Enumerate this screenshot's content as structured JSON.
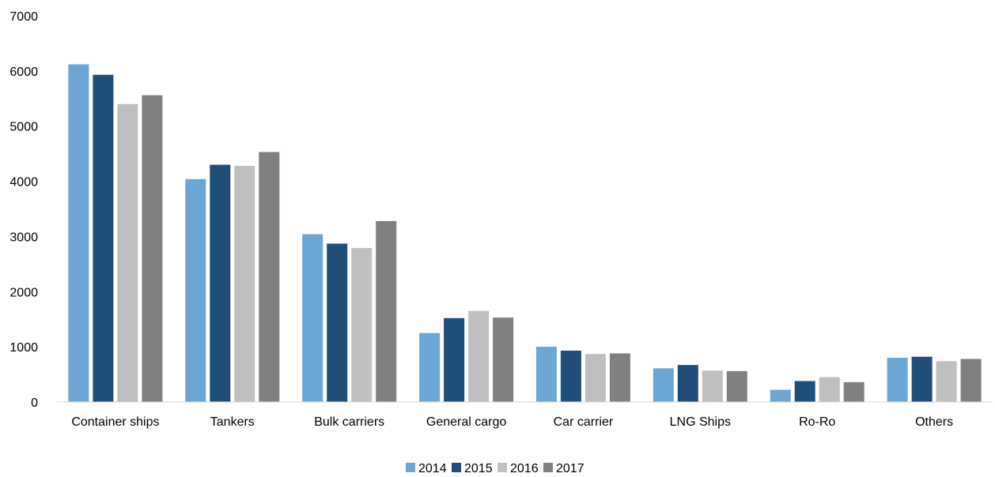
{
  "chart_data": {
    "type": "bar",
    "categories": [
      "Container ships",
      "Tankers",
      "Bulk carriers",
      "General cargo",
      "Car carrier",
      "LNG Ships",
      "Ro-Ro",
      "Others"
    ],
    "series": [
      {
        "name": "2014",
        "color": "#6aa6d6",
        "values": [
          6120,
          4040,
          3040,
          1250,
          1000,
          610,
          220,
          800
        ]
      },
      {
        "name": "2015",
        "color": "#1f4e79",
        "values": [
          5930,
          4300,
          2870,
          1520,
          930,
          670,
          380,
          820
        ]
      },
      {
        "name": "2016",
        "color": "#bfbfbf",
        "values": [
          5400,
          4280,
          2790,
          1650,
          870,
          570,
          450,
          740
        ]
      },
      {
        "name": "2017",
        "color": "#808080",
        "values": [
          5560,
          4530,
          3280,
          1530,
          880,
          560,
          360,
          780
        ]
      }
    ],
    "y_ticks": [
      "0",
      "1000",
      "2000",
      "3000",
      "4000",
      "5000",
      "6000",
      "7000"
    ],
    "ylim": [
      0,
      7000
    ],
    "title": "",
    "xlabel": "",
    "ylabel": "",
    "grid": false,
    "legend_position": "bottom"
  }
}
